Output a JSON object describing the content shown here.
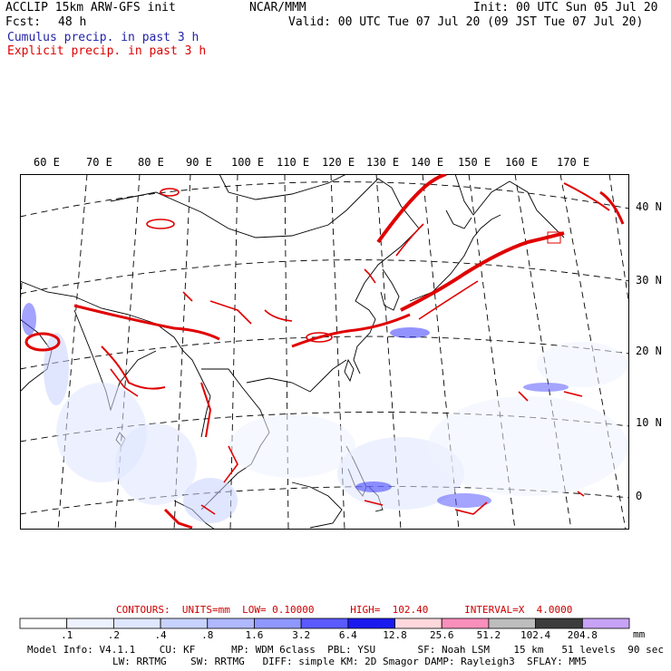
{
  "header": {
    "model": "ACCLIP 15km ARW-GFS init",
    "center": "NCAR/MMM",
    "init": "Init: 00 UTC Sun 05 Jul 20",
    "fcst_label": "Fcst:",
    "fcst_value": "48 h",
    "valid": "Valid: 00 UTC Tue 07 Jul 20 (09 JST Tue 07 Jul 20)"
  },
  "legend": {
    "cumulus": "Cumulus precip. in past 3 h",
    "explicit": "Explicit precip. in past 3 h",
    "cumulus_color": "#2a2aff",
    "explicit_color": "#e00000"
  },
  "longitude_labels": [
    "60 E",
    "70 E",
    "80 E",
    "90 E",
    "100 E",
    "110 E",
    "120 E",
    "130 E",
    "140 E",
    "150 E",
    "160 E",
    "170 E"
  ],
  "latitude_labels": [
    "40 N",
    "30 N",
    "20 N",
    "10 N",
    "0"
  ],
  "contours": {
    "text": "CONTOURS:  UNITS=mm  LOW= 0.10000      HIGH=  102.40      INTERVAL=X  4.0000",
    "color": "#cc0000"
  },
  "colorbar": {
    "unit": "mm",
    "levels": [
      ".1",
      ".2",
      ".4",
      ".8",
      "1.6",
      "3.2",
      "6.4",
      "12.8",
      "25.6",
      "51.2",
      "102.4",
      "204.8"
    ],
    "colors": [
      "#ffffff",
      "#eef2ff",
      "#dfe6ff",
      "#c8d2ff",
      "#b0b8ff",
      "#8f98ff",
      "#5a5aff",
      "#1a1aee",
      "#ffd8dc",
      "#f98fbb",
      "#bdbdbd",
      "#3c3c3c",
      "#c8a2f5"
    ]
  },
  "footer": {
    "line1": "Model Info: V4.1.1    CU: KF      MP: WDM 6class  PBL: YSU       SF: Noah LSM    15 km   51 levels  90 sec",
    "line2": "LW: RRTMG    SW: RRTMG   DIFF: simple KM: 2D Smagor DAMP: Rayleigh3  SFLAY: MM5"
  }
}
